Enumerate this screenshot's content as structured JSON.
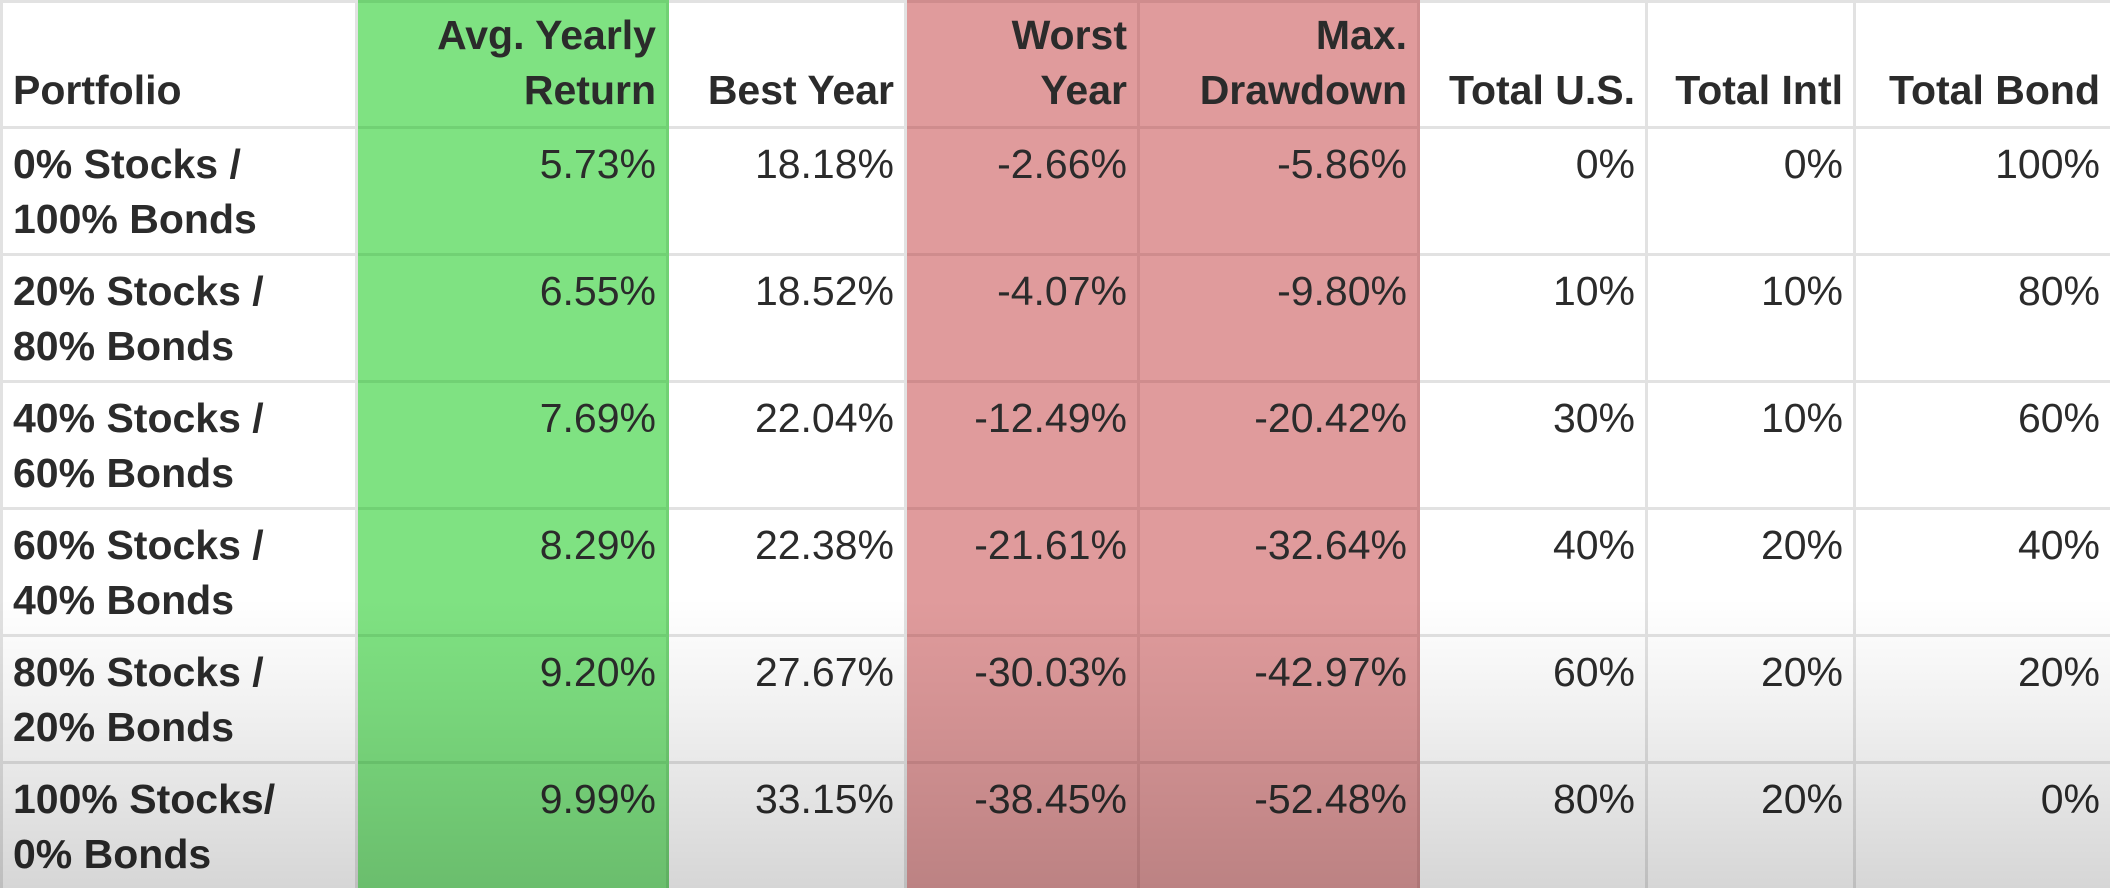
{
  "headers": [
    "Portfolio",
    "Avg. Yearly Return",
    "Best Year",
    "Worst Year",
    "Max. Drawdown",
    "Total U.S.",
    "Total Intl",
    "Total Bond"
  ],
  "rows": [
    [
      "0% Stocks / 100% Bonds",
      "5.73%",
      "18.18%",
      "-2.66%",
      "-5.86%",
      "0%",
      "0%",
      "100%"
    ],
    [
      "20% Stocks / 80% Bonds",
      "6.55%",
      "18.52%",
      "-4.07%",
      "-9.80%",
      "10%",
      "10%",
      "80%"
    ],
    [
      "40% Stocks / 60% Bonds",
      "7.69%",
      "22.04%",
      "-12.49%",
      "-20.42%",
      "30%",
      "10%",
      "60%"
    ],
    [
      "60% Stocks / 40% Bonds",
      "8.29%",
      "22.38%",
      "-21.61%",
      "-32.64%",
      "40%",
      "20%",
      "40%"
    ],
    [
      "80% Stocks / 20% Bonds",
      "9.20%",
      "27.67%",
      "-30.03%",
      "-42.97%",
      "60%",
      "20%",
      "20%"
    ],
    [
      "100% Stocks/ 0% Bonds",
      "9.99%",
      "33.15%",
      "-38.45%",
      "-52.48%",
      "80%",
      "20%",
      "0%"
    ]
  ],
  "colors": {
    "return_column": "#7fe282",
    "loss_columns": "#e09b9c"
  }
}
